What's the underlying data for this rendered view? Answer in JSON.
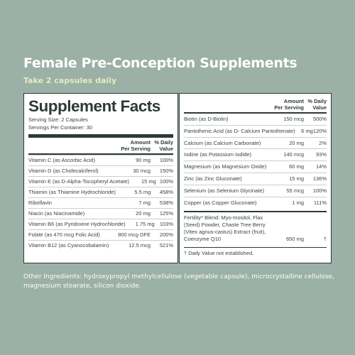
{
  "header": {
    "title": "Female Pre-Conception Supplements",
    "subtitle": "Take 2 capsules daily"
  },
  "facts": {
    "title": "Supplement Facts",
    "serving_size": "Serving Size: 2 Capsules",
    "servings_per_container": "Servings Per Container: 30",
    "amount_header": "Amount\nPer Serving",
    "dv_header": "% Daily\nValue"
  },
  "left_rows": [
    {
      "name": "Vitamin C (as Ascorbic Acid)",
      "amount": "90 mg",
      "dv": "100%"
    },
    {
      "name": "Vitamin D (as Cholecalciferol)",
      "amount": "30 mcg",
      "dv": "150%"
    },
    {
      "name": "Vitamin E (as D-Alpha-Tocopheryl Acetate)",
      "amount": "15 mg",
      "dv": "100%"
    },
    {
      "name": "Thiamin (as Thiamine Hydrochloride)",
      "amount": "5.5 mg",
      "dv": "458%"
    },
    {
      "name": "Riboflavin",
      "amount": "7 mg",
      "dv": "538%"
    },
    {
      "name": "Niacin (as Niacinamide)",
      "amount": "20 mg",
      "dv": "125%"
    },
    {
      "name": "Vitamin B6 (as Pyridoxine Hydrochloride)",
      "amount": "1.75 mg",
      "dv": "103%"
    },
    {
      "name": "Folate (as 470 mcg Folic Acid)",
      "amount": "800 mcg DFE",
      "dv": "200%"
    },
    {
      "name": "Vitamin B12 (as Cyanocobalamin)",
      "amount": "12.5 mcg",
      "dv": "521%"
    }
  ],
  "right_rows": [
    {
      "name": "Biotin (as D-Biotin)",
      "amount": "150 mcg",
      "dv": "500%"
    },
    {
      "name": "Pantothenic Acid (as D- Calcium Pantothenate)",
      "amount": "6 mg",
      "dv": "120%"
    },
    {
      "name": "Calcium (as Calcium Carbonate)",
      "amount": "20 mg",
      "dv": "2%"
    },
    {
      "name": "Iodine (as Potassium Iodide)",
      "amount": "140 mcg",
      "dv": "93%"
    },
    {
      "name": "Magnesium (as Magnesium Oxide)",
      "amount": "60 mg",
      "dv": "14%"
    },
    {
      "name": "Zinc (as Zinc Gluconate)",
      "amount": "15 mg",
      "dv": "136%"
    },
    {
      "name": "Selenium (as Selenium Glycinate)",
      "amount": "55 mcg",
      "dv": "100%"
    },
    {
      "name": "Copper (as Copper Gluconate)",
      "amount": "1 mg",
      "dv": "111%"
    }
  ],
  "fertility": {
    "text": "Fertility* Blend: Myo-Inositol, Flax (Seed) Powder, Chaste Tree Berry (Vitex agnus-castus) Extract (fruit), Coenzyme Q10",
    "amount": "650 mg",
    "dv": "†"
  },
  "footnote": "† Daily Value not established.",
  "other_ingredients": "Other Ingredients: hydroxypropyl methylcellulose (vegetable capsule), microcrystalline cellulose, magnesium stearate, silicon dioxide."
}
